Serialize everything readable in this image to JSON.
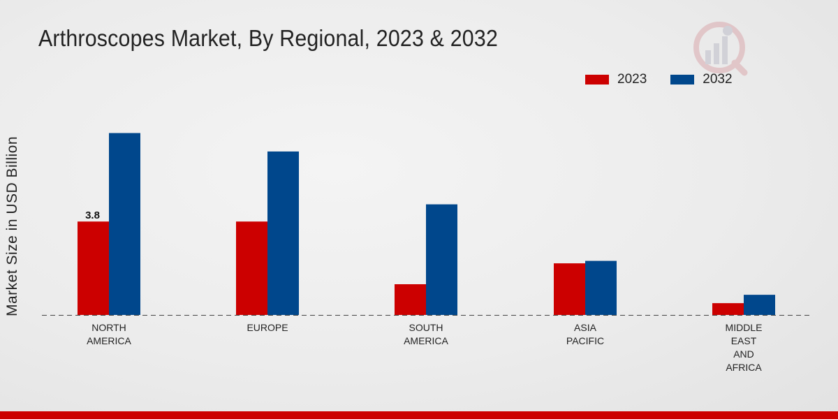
{
  "chart_data": {
    "type": "bar",
    "title": "Arthroscopes Market, By Regional, 2023 & 2032",
    "xlabel": "",
    "ylabel": "Market Size in USD Billion",
    "ylim": [
      0,
      10
    ],
    "grid": false,
    "legend_position": "top-right",
    "categories": [
      "NORTH\nAMERICA",
      "EUROPE",
      "SOUTH\nAMERICA",
      "ASIA\nPACIFIC",
      "MIDDLE\nEAST\nAND\nAFRICA"
    ],
    "series": [
      {
        "name": "2023",
        "color": "#cc0000",
        "values": [
          3.8,
          3.8,
          1.25,
          2.1,
          0.48
        ]
      },
      {
        "name": "2032",
        "color": "#00478c",
        "values": [
          7.4,
          6.65,
          4.5,
          2.2,
          0.82
        ]
      }
    ],
    "data_labels": [
      {
        "series": 0,
        "index": 0,
        "text": "3.8"
      }
    ]
  },
  "legend": {
    "items": [
      "2023",
      "2032"
    ]
  }
}
